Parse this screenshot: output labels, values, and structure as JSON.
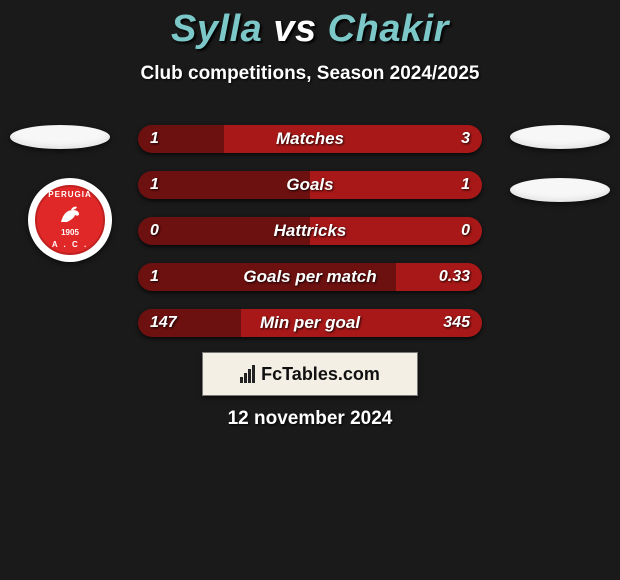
{
  "background_color": "#1a1a1a",
  "title": {
    "player1": "Sylla",
    "vs": "vs",
    "player2": "Chakir",
    "color_players": "#7cc8c8",
    "color_vs": "#ffffff",
    "fontsize": 38
  },
  "subtitle": {
    "text": "Club competitions, Season 2024/2025",
    "color": "#ffffff",
    "fontsize": 19
  },
  "ellipses": {
    "color": "#f7f7f7",
    "width": 100,
    "height": 24
  },
  "club": {
    "name_top": "PERUGIA",
    "name_bottom": "A . C .",
    "year": "1905",
    "primary_color": "#e02828",
    "border_color": "#c02020",
    "text_color": "#ffffff"
  },
  "bars": {
    "left_color": "#6d1010",
    "right_color": "#a81818",
    "label_color": "#ffffff",
    "value_color": "#ffffff",
    "items": [
      {
        "label": "Matches",
        "left": "1",
        "right": "3",
        "left_pct": 25,
        "right_pct": 75
      },
      {
        "label": "Goals",
        "left": "1",
        "right": "1",
        "left_pct": 50,
        "right_pct": 50
      },
      {
        "label": "Hattricks",
        "left": "0",
        "right": "0",
        "left_pct": 50,
        "right_pct": 50
      },
      {
        "label": "Goals per match",
        "left": "1",
        "right": "0.33",
        "left_pct": 75,
        "right_pct": 25
      },
      {
        "label": "Min per goal",
        "left": "147",
        "right": "345",
        "left_pct": 30,
        "right_pct": 70
      }
    ]
  },
  "brand": {
    "text": "FcTables.com",
    "box_bg": "#f3efe4",
    "box_border": "#777777",
    "text_color": "#111111"
  },
  "date": {
    "text": "12 november 2024",
    "color": "#ffffff",
    "fontsize": 19
  }
}
